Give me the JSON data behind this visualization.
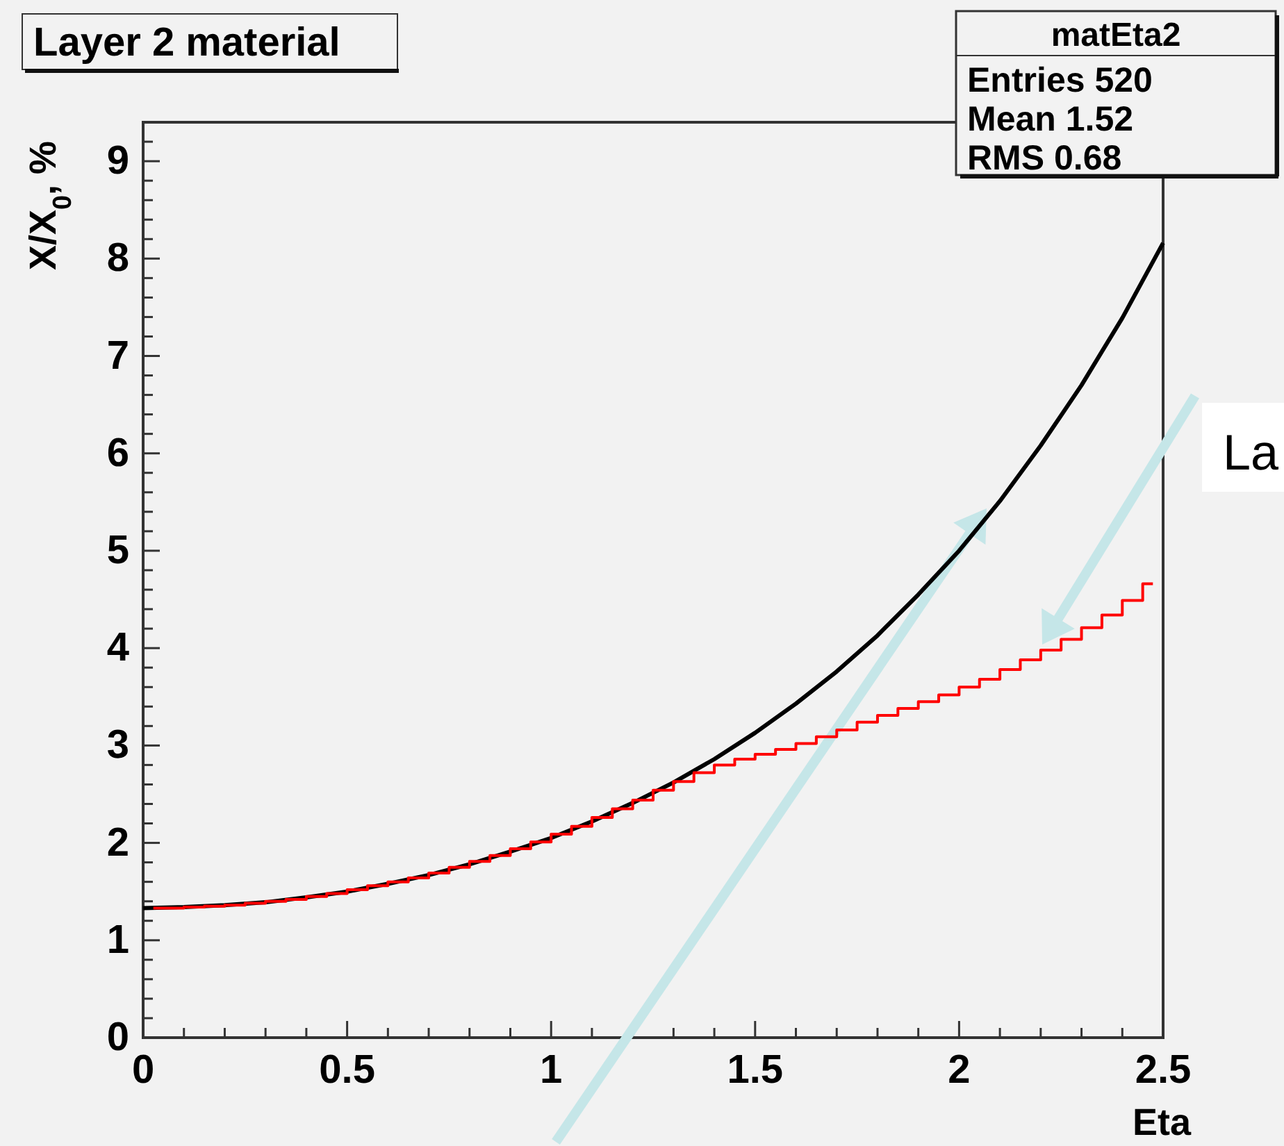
{
  "chart_data": {
    "type": "line",
    "title": "Layer 2 material",
    "xlabel": "Eta",
    "ylabel": "X/X$_{0}$, %",
    "xlim": [
      0,
      2.5
    ],
    "ylim": [
      0,
      9.4
    ],
    "xticks": [
      0,
      {
        "value": 0.1,
        "label": null
      },
      {
        "value": 0.2,
        "label": null
      },
      {
        "value": 0.3,
        "label": null
      },
      {
        "value": 0.4,
        "label": null
      },
      0.5,
      {
        "value": 0.6,
        "label": null
      },
      {
        "value": 0.7,
        "label": null
      },
      {
        "value": 0.8,
        "label": null
      },
      {
        "value": 0.9,
        "label": null
      },
      1,
      {
        "value": 1.1,
        "label": null
      },
      {
        "value": 1.2,
        "label": null
      },
      {
        "value": 1.3,
        "label": null
      },
      {
        "value": 1.4,
        "label": null
      },
      1.5,
      {
        "value": 1.6,
        "label": null
      },
      {
        "value": 1.7,
        "label": null
      },
      {
        "value": 1.8,
        "label": null
      },
      {
        "value": 1.9,
        "label": null
      },
      2,
      {
        "value": 2.1,
        "label": null
      },
      {
        "value": 2.2,
        "label": null
      },
      {
        "value": 2.3,
        "label": null
      },
      {
        "value": 2.4,
        "label": null
      },
      2.5
    ],
    "yticks": [
      0,
      {
        "value": 0.2,
        "label": null
      },
      {
        "value": 0.4,
        "label": null
      },
      {
        "value": 0.6,
        "label": null
      },
      {
        "value": 0.8,
        "label": null
      },
      1,
      {
        "value": 1.2,
        "label": null
      },
      {
        "value": 1.4,
        "label": null
      },
      {
        "value": 1.6,
        "label": null
      },
      {
        "value": 1.8,
        "label": null
      },
      2,
      {
        "value": 2.2,
        "label": null
      },
      {
        "value": 2.4,
        "label": null
      },
      {
        "value": 2.6,
        "label": null
      },
      {
        "value": 2.8,
        "label": null
      },
      3,
      {
        "value": 3.2,
        "label": null
      },
      {
        "value": 3.4,
        "label": null
      },
      {
        "value": 3.6,
        "label": null
      },
      {
        "value": 3.8,
        "label": null
      },
      4,
      {
        "value": 4.2,
        "label": null
      },
      {
        "value": 4.4,
        "label": null
      },
      {
        "value": 4.6,
        "label": null
      },
      {
        "value": 4.8,
        "label": null
      },
      5,
      {
        "value": 5.2,
        "label": null
      },
      {
        "value": 5.4,
        "label": null
      },
      {
        "value": 5.6,
        "label": null
      },
      {
        "value": 5.8,
        "label": null
      },
      6,
      {
        "value": 6.2,
        "label": null
      },
      {
        "value": 6.4,
        "label": null
      },
      {
        "value": 6.6,
        "label": null
      },
      {
        "value": 6.8,
        "label": null
      },
      7,
      {
        "value": 7.2,
        "label": null
      },
      {
        "value": 7.4,
        "label": null
      },
      {
        "value": 7.6,
        "label": null
      },
      {
        "value": 7.8,
        "label": null
      },
      8,
      {
        "value": 8.2,
        "label": null
      },
      {
        "value": 8.4,
        "label": null
      },
      {
        "value": 8.6,
        "label": null
      },
      {
        "value": 8.8,
        "label": null
      },
      9,
      {
        "value": 9.2,
        "label": null
      }
    ],
    "series": [
      {
        "type": "line",
        "color": "#000000",
        "x": [
          0,
          0.1,
          0.2,
          0.3,
          0.4,
          0.5,
          0.6,
          0.7,
          0.8,
          0.9,
          1.0,
          1.1,
          1.2,
          1.3,
          1.4,
          1.5,
          1.6,
          1.7,
          1.8,
          1.9,
          2.0,
          2.1,
          2.2,
          2.3,
          2.4,
          2.5
        ],
        "values": [
          1.33,
          1.34,
          1.36,
          1.39,
          1.44,
          1.5,
          1.58,
          1.67,
          1.78,
          1.91,
          2.05,
          2.22,
          2.41,
          2.62,
          2.86,
          3.13,
          3.43,
          3.76,
          4.13,
          4.55,
          5.0,
          5.51,
          6.08,
          6.7,
          7.39,
          8.16
        ]
      },
      {
        "type": "step",
        "color": "#ff0000",
        "x": [
          0.025,
          0.075,
          0.125,
          0.175,
          0.225,
          0.275,
          0.325,
          0.375,
          0.425,
          0.475,
          0.525,
          0.575,
          0.625,
          0.675,
          0.725,
          0.775,
          0.825,
          0.875,
          0.925,
          0.975,
          1.025,
          1.075,
          1.125,
          1.175,
          1.225,
          1.275,
          1.325,
          1.375,
          1.425,
          1.475,
          1.525,
          1.575,
          1.625,
          1.675,
          1.725,
          1.775,
          1.825,
          1.875,
          1.925,
          1.975,
          2.025,
          2.075,
          2.125,
          2.175,
          2.225,
          2.275,
          2.325,
          2.375,
          2.425,
          2.475
        ],
        "values": [
          1.33,
          1.33,
          1.34,
          1.35,
          1.36,
          1.38,
          1.4,
          1.42,
          1.45,
          1.48,
          1.52,
          1.56,
          1.6,
          1.64,
          1.69,
          1.75,
          1.81,
          1.87,
          1.94,
          2.01,
          2.09,
          2.17,
          2.26,
          2.35,
          2.44,
          2.54,
          2.63,
          2.72,
          2.8,
          2.86,
          2.91,
          2.96,
          3.02,
          3.09,
          3.16,
          3.24,
          3.31,
          3.38,
          3.45,
          3.52,
          3.6,
          3.68,
          3.78,
          3.88,
          3.98,
          4.09,
          4.21,
          4.34,
          4.49,
          4.66
        ]
      }
    ],
    "annotations": [
      "matEta2",
      "Entries 520",
      "Mean 1.52",
      "RMS 0.68",
      "La"
    ]
  }
}
